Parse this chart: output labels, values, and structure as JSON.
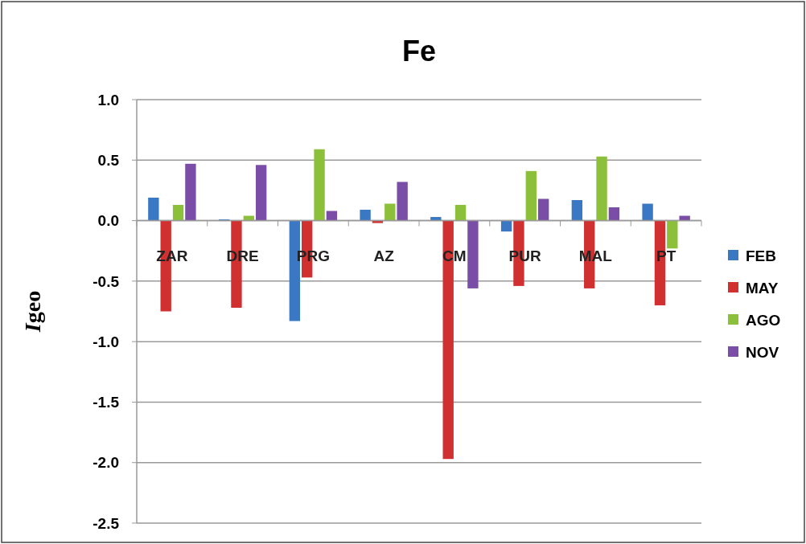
{
  "chart_data": {
    "type": "bar",
    "title": "Fe",
    "ylabel": "Igeo",
    "categories": [
      "ZAR",
      "DRE",
      "PRG",
      "AZ",
      "CM",
      "PUR",
      "MAL",
      "PT"
    ],
    "series": [
      {
        "name": "FEB",
        "color": "#3a78c4",
        "values": [
          0.19,
          0.01,
          -0.83,
          0.09,
          0.03,
          -0.09,
          0.17,
          0.14
        ]
      },
      {
        "name": "MAY",
        "color": "#d03030",
        "values": [
          -0.75,
          -0.72,
          -0.47,
          -0.02,
          -1.97,
          -0.54,
          -0.56,
          -0.7
        ]
      },
      {
        "name": "AGO",
        "color": "#8cbf3a",
        "values": [
          0.13,
          0.04,
          0.59,
          0.14,
          0.13,
          0.41,
          0.53,
          -0.23
        ]
      },
      {
        "name": "NOV",
        "color": "#7a4ea6",
        "values": [
          0.47,
          0.46,
          0.08,
          0.32,
          -0.56,
          0.18,
          0.11,
          0.04
        ]
      }
    ],
    "ylim": [
      -2.5,
      1
    ],
    "yticks": [
      {
        "value": 1,
        "label": "1.0"
      },
      {
        "value": 0.5,
        "label": "0.5"
      },
      {
        "value": 0,
        "label": "0.0"
      },
      {
        "value": -0.5,
        "label": "-0.5"
      },
      {
        "value": -1,
        "label": "-1.0"
      },
      {
        "value": -1.5,
        "label": "-1.5"
      },
      {
        "value": -2,
        "label": "-2.0"
      },
      {
        "value": -2.5,
        "label": "-2.5"
      }
    ],
    "grid": "y",
    "legend": "right"
  }
}
